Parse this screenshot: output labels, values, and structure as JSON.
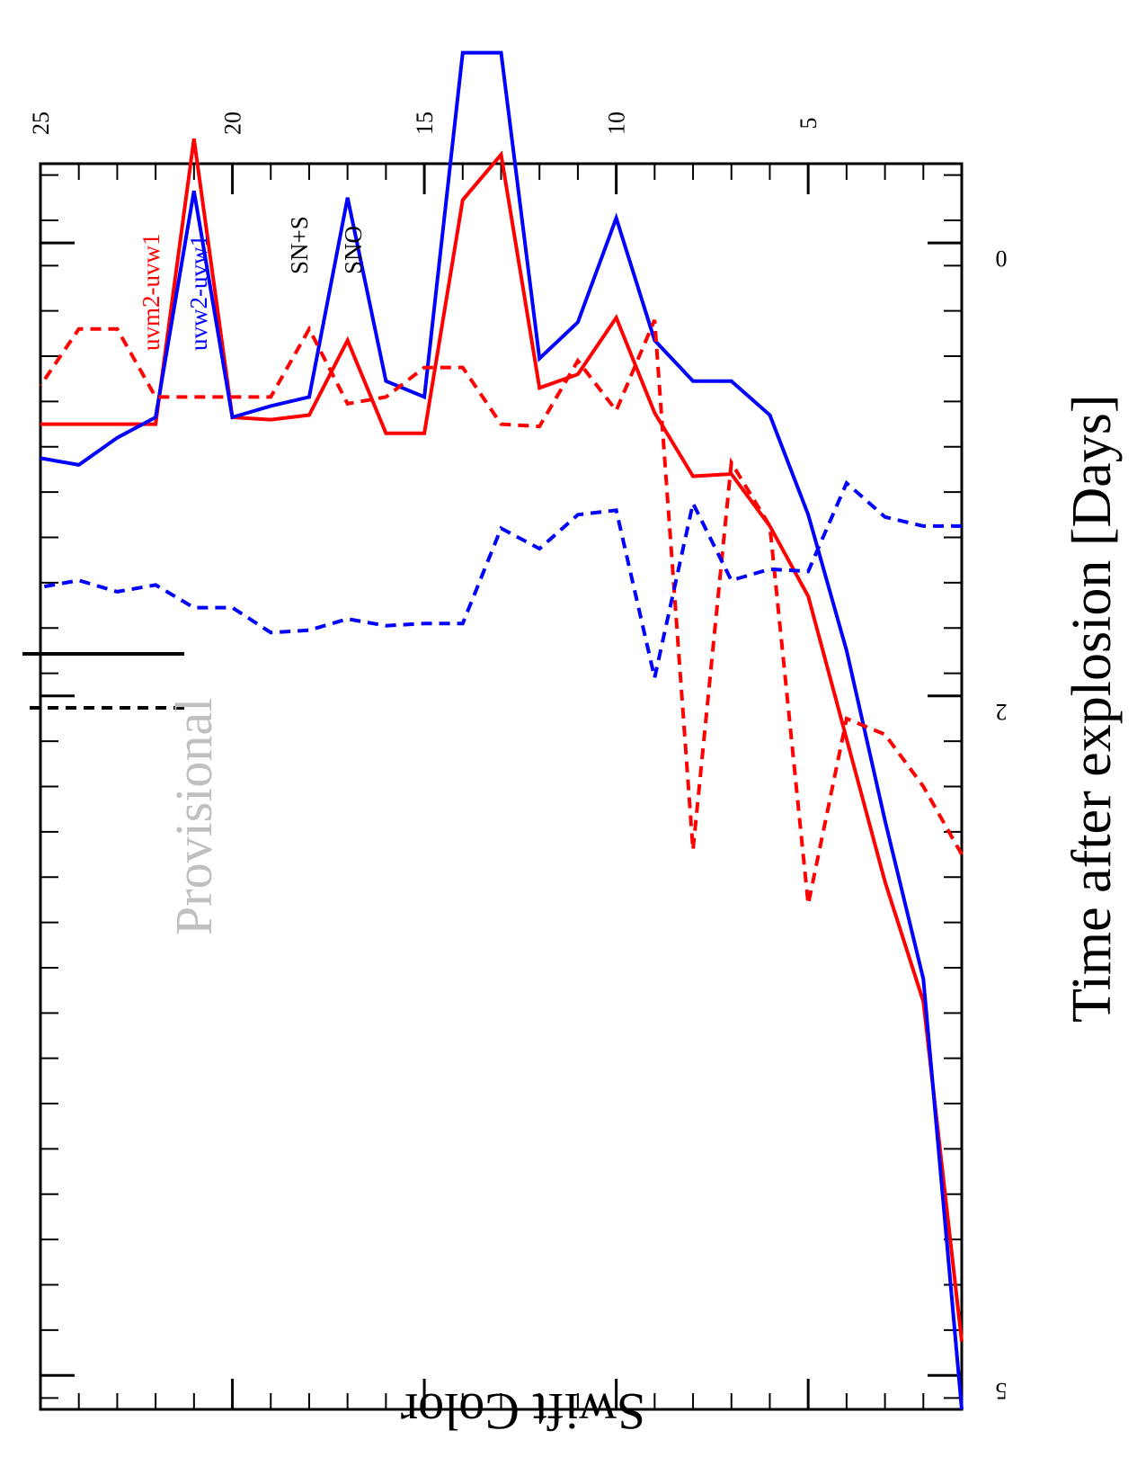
{
  "chart_data": {
    "type": "line",
    "xlabel": "Time after explosion [Days]",
    "ylabel": "Swift Color",
    "xlim": [
      1,
      25
    ],
    "ylim": [
      -0.35,
      5.15
    ],
    "x_ticks": [
      "5",
      "10",
      "15",
      "20",
      "25"
    ],
    "y_ticks": [
      "0",
      "2",
      "5"
    ],
    "watermark": "Provisional",
    "colors": {
      "uvm2-uvw1": "#ff0000",
      "uvw2-uvw1": "#0000ff"
    },
    "legend_colors": [
      {
        "name": "uvm2-uvw1",
        "color": "#ff0000"
      },
      {
        "name": "uvw2-uvw1",
        "color": "#0000ff"
      }
    ],
    "legend_styles": [
      {
        "name": "SN+S",
        "dash": "solid"
      },
      {
        "name": "SNO",
        "dash": "dashed"
      }
    ],
    "series": [
      {
        "color": "#ff0000",
        "dash": "solid",
        "x": [
          1,
          2,
          3,
          4,
          5,
          6,
          7,
          8,
          9,
          10,
          11,
          12,
          13,
          14,
          15,
          16,
          17,
          18,
          19,
          20,
          21,
          22,
          23,
          24,
          25
        ],
        "y": [
          4.85,
          3.35,
          2.82,
          2.19,
          1.56,
          1.25,
          1.02,
          1.03,
          0.75,
          0.33,
          0.58,
          0.64,
          -0.39,
          -0.19,
          0.84,
          0.84,
          0.43,
          0.76,
          0.78,
          0.77,
          -0.46,
          0.8,
          0.8,
          0.8,
          0.8
        ]
      },
      {
        "color": "#0000ff",
        "dash": "solid",
        "x": [
          1,
          2,
          3,
          4,
          5,
          6,
          7,
          8,
          9,
          10,
          11,
          12,
          13,
          14,
          15,
          16,
          17,
          18,
          19,
          20,
          21,
          22,
          23,
          24,
          25
        ],
        "y": [
          5.15,
          3.25,
          2.55,
          1.8,
          1.2,
          0.76,
          0.61,
          0.61,
          0.43,
          -0.11,
          0.35,
          0.51,
          -0.84,
          -0.84,
          0.68,
          0.61,
          -0.2,
          0.68,
          0.72,
          0.77,
          -0.23,
          0.77,
          0.86,
          0.98,
          0.95
        ]
      },
      {
        "color": "#ff0000",
        "dash": "dashed",
        "x": [
          1,
          2,
          3,
          4,
          5,
          6,
          7,
          8,
          9,
          10,
          11,
          12,
          13,
          14,
          15,
          16,
          17,
          18,
          19,
          20,
          21,
          22,
          23,
          24,
          25
        ],
        "y": [
          2.7,
          2.4,
          2.17,
          2.1,
          2.92,
          1.25,
          0.97,
          2.68,
          0.34,
          0.74,
          0.52,
          0.81,
          0.8,
          0.55,
          0.55,
          0.68,
          0.71,
          0.38,
          0.68,
          0.68,
          0.68,
          0.68,
          0.38,
          0.38,
          0.63
        ]
      },
      {
        "color": "#0000ff",
        "dash": "dashed",
        "x": [
          1,
          2,
          3,
          4,
          5,
          6,
          7,
          8,
          9,
          10,
          11,
          12,
          13,
          14,
          15,
          16,
          17,
          18,
          19,
          20,
          21,
          22,
          23,
          24,
          25
        ],
        "y": [
          1.25,
          1.25,
          1.21,
          1.06,
          1.45,
          1.44,
          1.49,
          1.15,
          1.92,
          1.18,
          1.2,
          1.35,
          1.26,
          1.68,
          1.68,
          1.69,
          1.66,
          1.71,
          1.72,
          1.61,
          1.61,
          1.51,
          1.54,
          1.49,
          1.52
        ]
      }
    ]
  }
}
